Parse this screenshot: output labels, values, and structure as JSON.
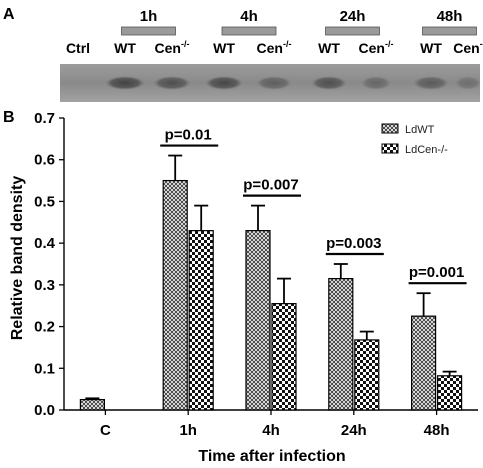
{
  "panel_a": {
    "letter": "A",
    "time_labels": [
      "1h",
      "4h",
      "24h",
      "48h"
    ],
    "lane_labels": [
      "Ctrl",
      "WT",
      "Cen",
      "WT",
      "Cen",
      "WT",
      "Cen",
      "WT",
      "Cen"
    ],
    "lane_superscripts": [
      "",
      "",
      "-/-",
      "",
      "-/-",
      "",
      "-/-",
      "",
      "-"
    ]
  },
  "panel_b": {
    "letter": "B"
  },
  "chart_data": {
    "type": "bar",
    "categories": [
      "C",
      "1h",
      "4h",
      "24h",
      "48h"
    ],
    "series": [
      {
        "name": "LdWT",
        "values": [
          0.025,
          0.55,
          0.43,
          0.315,
          0.225
        ],
        "errors": [
          0.003,
          0.06,
          0.06,
          0.035,
          0.055
        ],
        "pattern": "crosshatch"
      },
      {
        "name": "LdCen-/-",
        "values": [
          null,
          0.43,
          0.255,
          0.168,
          0.082
        ],
        "errors": [
          null,
          0.06,
          0.06,
          0.02,
          0.01
        ],
        "pattern": "checker"
      }
    ],
    "xlabel": "Time after infection",
    "ylabel": "Relative band density",
    "ylim": [
      0,
      0.7
    ],
    "yticks": [
      "0.0",
      "0.1",
      "0.2",
      "0.3",
      "0.4",
      "0.5",
      "0.6",
      "0.7"
    ],
    "annotations": [
      "p=0.01",
      "p=0.007",
      "p=0.003",
      "p=0.001"
    ],
    "legend_position": "top-right",
    "grid": false
  }
}
